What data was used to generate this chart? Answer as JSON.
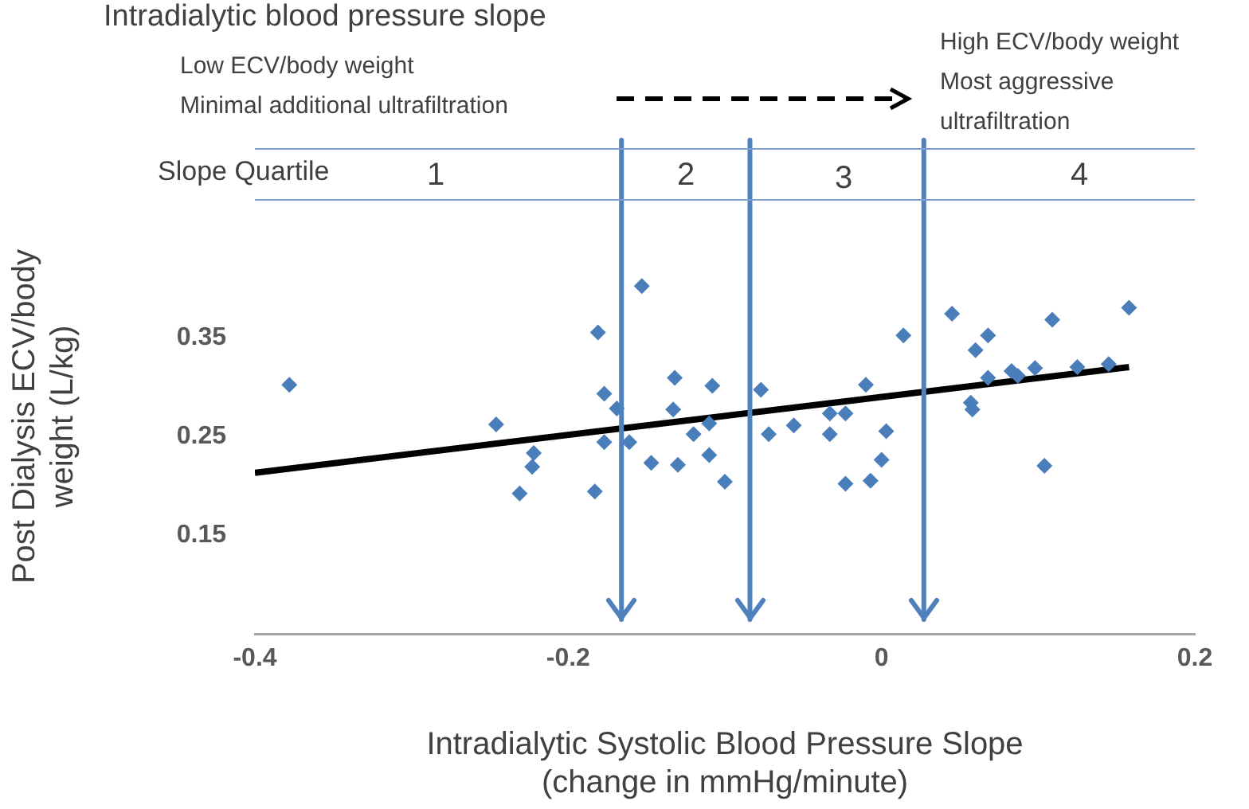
{
  "chart_data": {
    "type": "scatter",
    "title": "Intradialytic blood pressure slope",
    "xlabel": "Intradialytic Systolic Blood Pressure Slope\n(change in mmHg/minute)",
    "ylabel": "Post Dialysis ECV/body\nweight (L/kg)",
    "xlim": [
      -0.4,
      0.2
    ],
    "xticks": [
      -0.4,
      -0.2,
      {
        "value": 0,
        "label": "0"
      },
      0.2
    ],
    "ylim": [
      0.05,
      0.49
    ],
    "yticks": [
      0.15,
      0.25,
      0.35
    ],
    "grid": false,
    "legend": false,
    "marker": "diamond",
    "series": [
      {
        "color": "#4a7ebb",
        "x": [
          -0.378,
          -0.246,
          -0.222,
          -0.223,
          -0.231,
          -0.181,
          -0.183,
          -0.177,
          -0.177,
          -0.169,
          -0.161,
          -0.153,
          -0.147,
          -0.132,
          -0.133,
          -0.13,
          -0.12,
          -0.108,
          -0.11,
          -0.11,
          -0.1,
          -0.077,
          -0.072,
          -0.056,
          -0.033,
          -0.033,
          -0.023,
          -0.023,
          -0.01,
          -0.007,
          0,
          0.003,
          0.014,
          0.045,
          0.057,
          0.058,
          0.06,
          0.068,
          0.068,
          0.083,
          0.087,
          0.098,
          0.104,
          0.109,
          0.125,
          0.145,
          0.158
        ],
        "values": [
          0.302,
          0.262,
          0.233,
          0.219,
          0.192,
          0.355,
          0.194,
          0.293,
          0.244,
          0.278,
          0.244,
          0.402,
          0.223,
          0.309,
          0.277,
          0.221,
          0.252,
          0.301,
          0.263,
          0.231,
          0.204,
          0.297,
          0.252,
          0.261,
          0.273,
          0.252,
          0.273,
          0.202,
          0.302,
          0.205,
          0.226,
          0.255,
          0.352,
          0.374,
          0.284,
          0.277,
          0.337,
          0.352,
          0.309,
          0.316,
          0.311,
          0.319,
          0.22,
          0.368,
          0.32,
          0.323,
          0.38
        ]
      },
      {
        "type": "line",
        "color": "#000000",
        "marker": "none",
        "line_style": "solid",
        "x": [
          -0.4,
          0.158
        ],
        "values": [
          0.213,
          0.32
        ]
      }
    ],
    "ref_lines": [
      {
        "axis": "x",
        "value": -0.166,
        "color": "#4f81bd"
      },
      {
        "axis": "x",
        "value": -0.084,
        "color": "#4f81bd"
      },
      {
        "axis": "x",
        "value": 0.027,
        "color": "#4f81bd"
      }
    ],
    "annotations": [
      "Low ECV/body weight\nMinimal additional ultrafiltration",
      "High ECV/body weight\nMost aggressive\nultrafiltration",
      "Slope Quartile",
      "1",
      "2",
      "3",
      "4"
    ]
  }
}
